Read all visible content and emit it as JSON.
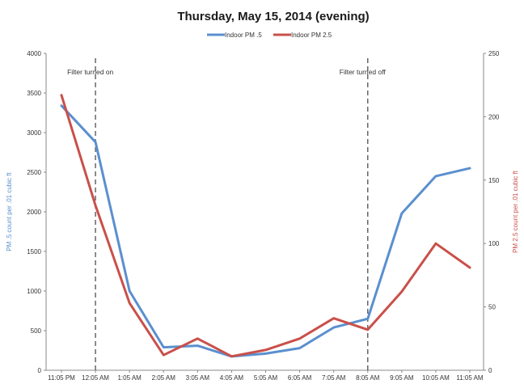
{
  "chart_data": {
    "type": "line",
    "title": "Thursday, May 15, 2014 (evening)",
    "categories": [
      "11:05 PM",
      "12:05 AM",
      "1:05 AM",
      "2:05 AM",
      "3:05 AM",
      "4:05 AM",
      "5:05 AM",
      "6:05 AM",
      "7:05 AM",
      "8:05 AM",
      "9:05 AM",
      "10:05 AM",
      "11:05 AM"
    ],
    "series": [
      {
        "name": "Indoor PM .5",
        "axis": "left",
        "color": "#5b8fcf",
        "values": [
          3340,
          2880,
          1000,
          290,
          310,
          175,
          210,
          280,
          540,
          650,
          1980,
          2450,
          2550
        ]
      },
      {
        "name": "Indoor PM 2.5",
        "axis": "right",
        "color": "#c9504a",
        "values": [
          217,
          130,
          53,
          12,
          25,
          11,
          16,
          25,
          41,
          32,
          62,
          100,
          81
        ]
      }
    ],
    "ylabel": "PM .5 count per .01 cubic ft",
    "ylabel_color": "#5b8fcf",
    "y2label": "PM 2.5 count per .01 cubic ft",
    "y2label_color": "#c9504a",
    "ylim": [
      0,
      4000
    ],
    "y2lim": [
      0,
      250
    ],
    "yticks": [
      0,
      500,
      1000,
      1500,
      2000,
      2500,
      3000,
      3500,
      4000
    ],
    "y2ticks": [
      0,
      50,
      100,
      150,
      200,
      250
    ],
    "legend_position": "top-center",
    "grid": false,
    "annotations": [
      {
        "category": "12:05 AM",
        "text": "Filter turned on"
      },
      {
        "category": "8:05 AM",
        "text": "Filter turned off"
      }
    ]
  }
}
